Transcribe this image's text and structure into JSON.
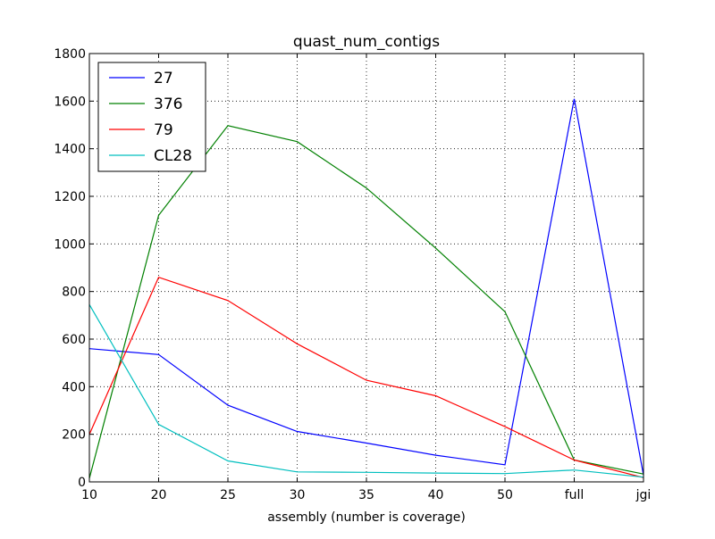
{
  "chart_data": {
    "type": "line",
    "title": "quast_num_contigs",
    "xlabel": "assembly (number is coverage)",
    "ylabel": "",
    "categories": [
      "10",
      "20",
      "25",
      "30",
      "35",
      "40",
      "50",
      "full",
      "jgi"
    ],
    "ylim": [
      0,
      1800
    ],
    "yticks": [
      "0",
      "200",
      "400",
      "600",
      "800",
      "1000",
      "1200",
      "1400",
      "1600",
      "1800"
    ],
    "grid": true,
    "legend_position": "top-left",
    "series": [
      {
        "name": "27",
        "color": "#0000ff",
        "values": [
          560,
          535,
          322,
          212,
          163,
          112,
          72,
          1610,
          28
        ]
      },
      {
        "name": "376",
        "color": "#008000",
        "values": [
          15,
          1120,
          1497,
          1430,
          1235,
          982,
          715,
          92,
          33
        ]
      },
      {
        "name": "79",
        "color": "#ff0000",
        "values": [
          200,
          860,
          762,
          580,
          427,
          362,
          232,
          92,
          18
        ]
      },
      {
        "name": "CL28",
        "color": "#00bfbf",
        "values": [
          745,
          242,
          88,
          42,
          40,
          37,
          35,
          50,
          20
        ]
      }
    ]
  }
}
